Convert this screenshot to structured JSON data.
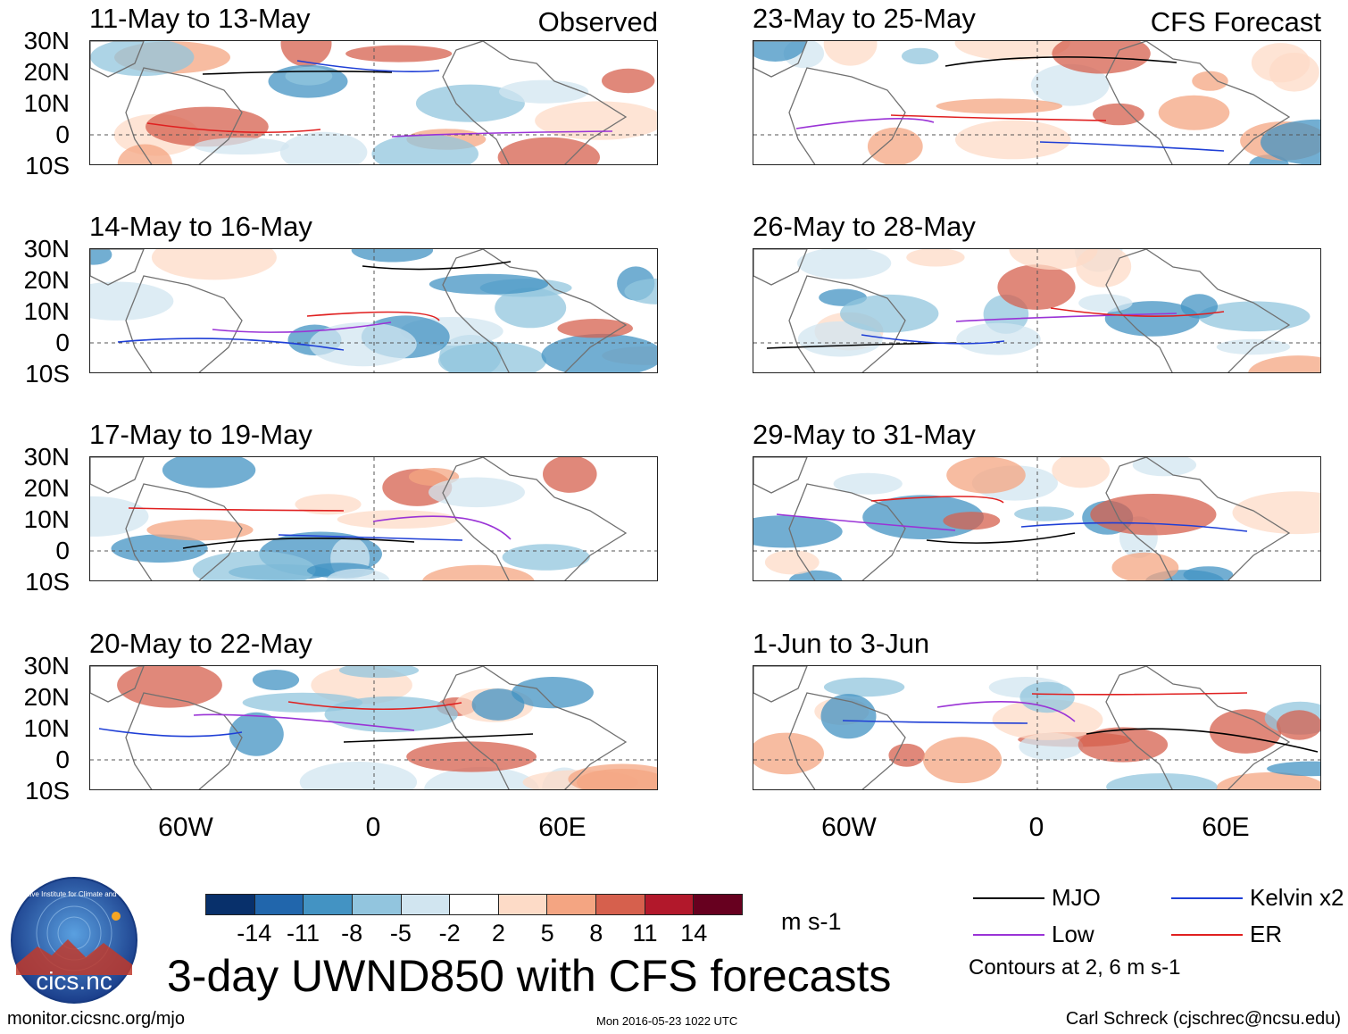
{
  "panels": [
    {
      "title": "11-May to 13-May",
      "tag": "Observed"
    },
    {
      "title": "23-May to 25-May",
      "tag": "CFS Forecast"
    },
    {
      "title": "14-May to 16-May",
      "tag": ""
    },
    {
      "title": "26-May to 28-May",
      "tag": ""
    },
    {
      "title": "17-May to 19-May",
      "tag": ""
    },
    {
      "title": "29-May to 31-May",
      "tag": ""
    },
    {
      "title": "20-May to 22-May",
      "tag": ""
    },
    {
      "title": "1-Jun to 3-Jun",
      "tag": ""
    }
  ],
  "lat_labels": [
    "30N",
    "20N",
    "10N",
    "0",
    "10S"
  ],
  "lon_labels": [
    "60W",
    "0",
    "60E"
  ],
  "colorbar": {
    "colors": [
      "#08306b",
      "#2166ac",
      "#4393c3",
      "#92c5de",
      "#d1e5f0",
      "#ffffff",
      "#fddbc7",
      "#f4a582",
      "#d6604d",
      "#b2182b",
      "#67001f"
    ],
    "labels": [
      "-14",
      "-11",
      "-8",
      "-5",
      "-2",
      "2",
      "5",
      "8",
      "11",
      "14"
    ],
    "units": "m s-1"
  },
  "title": "3-day UWND850 with CFS forecasts",
  "legend": [
    {
      "label": "MJO",
      "color": "#000000"
    },
    {
      "label": "Kelvin x2",
      "color": "#1f3fd6"
    },
    {
      "label": "Low",
      "color": "#9a33d6"
    },
    {
      "label": "ER",
      "color": "#e02020"
    }
  ],
  "contour_note": "Contours at 2, 6 m s-1",
  "footer": {
    "left": "monitor.cicsnc.org/mjo",
    "middle": "Mon 2016-05-23 1022 UTC",
    "right": "Carl Schreck (cjschrec@ncsu.edu)"
  },
  "logo": {
    "text": "cics.nc",
    "ring_text": "Cooperative Institute for Climate and Satellites"
  }
}
